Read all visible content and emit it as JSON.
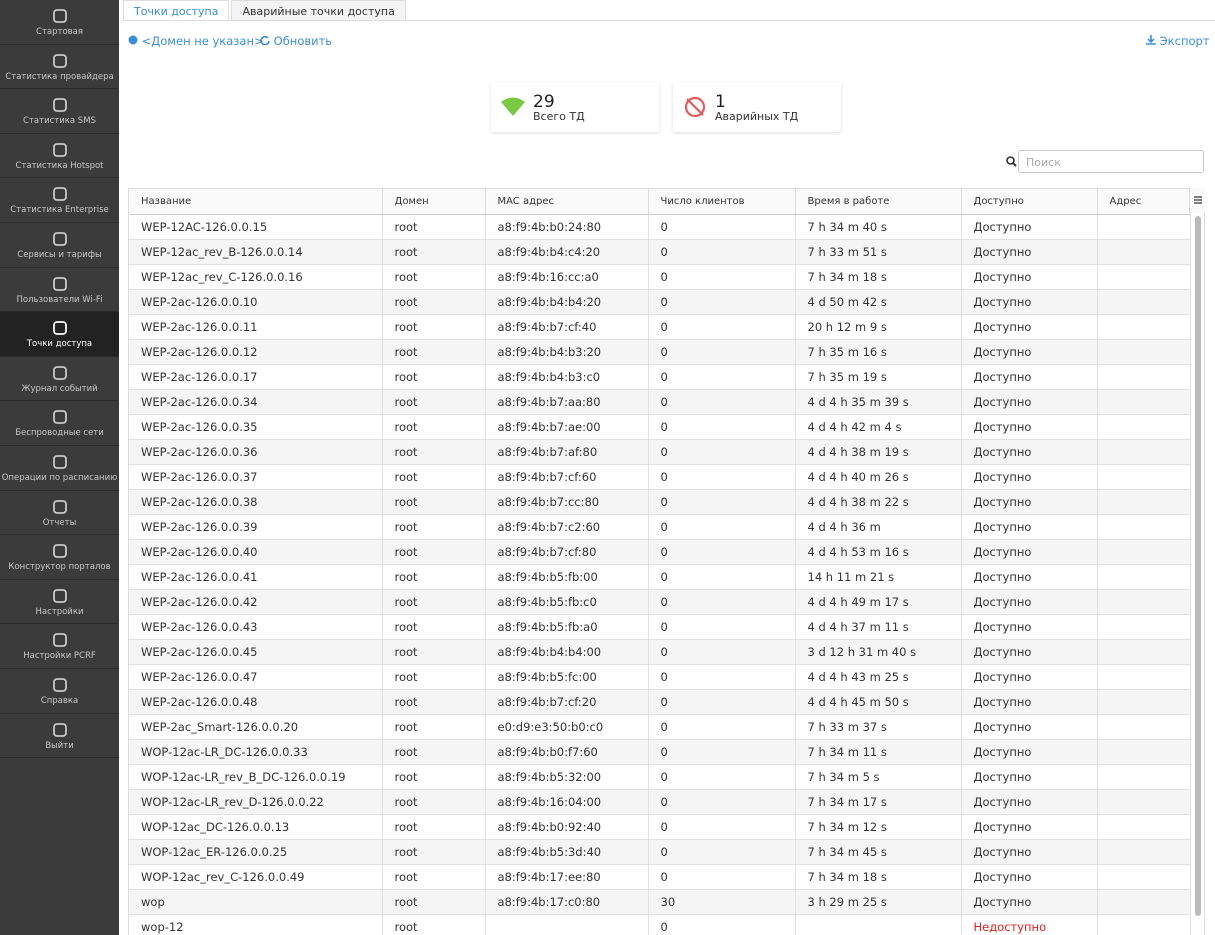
{
  "sidebar": {
    "items": [
      "Стартовая",
      "Статистика провайдера",
      "Статистика SMS",
      "Статистика Hotspot",
      "Статистика Enterprise",
      "Сервисы и тарифы",
      "Пользователи Wi-Fi",
      "Точки доступа",
      "Журнал событий",
      "Беспроводные сети",
      "Операции по расписанию",
      "Отчеты",
      "Конструктор порталов",
      "Настройки",
      "Настройки PCRF",
      "Справка",
      "Выйти"
    ]
  },
  "tabs": [
    "Точки доступа",
    "Аварийные точки доступа"
  ],
  "toolbar": {
    "domain": "<Домен не указан>",
    "refresh": "Обновить",
    "export": "Экспорт"
  },
  "stats": [
    {
      "value": 29,
      "label": "Всего ТД"
    },
    {
      "value": 1,
      "label": "Аварийных ТД"
    }
  ],
  "search": {
    "placeholder": "Поиск"
  },
  "table": {
    "headers": [
      "Название",
      "Домен",
      "MAC адрес",
      "Число клиентов",
      "Время в работе",
      "Доступно",
      "Адрес"
    ],
    "rows": [
      {
        "name": "WEP-12AC-126.0.0.15",
        "domain": "root",
        "mac": "a8:f9:4b:b0:24:80",
        "clients": 0,
        "uptime": "7 h 34 m 40 s",
        "status": "Доступно"
      },
      {
        "name": "WEP-12ac_rev_B-126.0.0.14",
        "domain": "root",
        "mac": "a8:f9:4b:b4:c4:20",
        "clients": 0,
        "uptime": "7 h 33 m 51 s",
        "status": "Доступно"
      },
      {
        "name": "WEP-12ac_rev_C-126.0.0.16",
        "domain": "root",
        "mac": "a8:f9:4b:16:cc:a0",
        "clients": 0,
        "uptime": "7 h 34 m 18 s",
        "status": "Доступно"
      },
      {
        "name": "WEP-2ac-126.0.0.10",
        "domain": "root",
        "mac": "a8:f9:4b:b4:b4:20",
        "clients": 0,
        "uptime": "4 d 50 m 42 s",
        "status": "Доступно"
      },
      {
        "name": "WEP-2ac-126.0.0.11",
        "domain": "root",
        "mac": "a8:f9:4b:b7:cf:40",
        "clients": 0,
        "uptime": "20 h 12 m 9 s",
        "status": "Доступно"
      },
      {
        "name": "WEP-2ac-126.0.0.12",
        "domain": "root",
        "mac": "a8:f9:4b:b4:b3:20",
        "clients": 0,
        "uptime": "7 h 35 m 16 s",
        "status": "Доступно"
      },
      {
        "name": "WEP-2ac-126.0.0.17",
        "domain": "root",
        "mac": "a8:f9:4b:b4:b3:c0",
        "clients": 0,
        "uptime": "7 h 35 m 19 s",
        "status": "Доступно"
      },
      {
        "name": "WEP-2ac-126.0.0.34",
        "domain": "root",
        "mac": "a8:f9:4b:b7:aa:80",
        "clients": 0,
        "uptime": "4 d 4 h 35 m 39 s",
        "status": "Доступно"
      },
      {
        "name": "WEP-2ac-126.0.0.35",
        "domain": "root",
        "mac": "a8:f9:4b:b7:ae:00",
        "clients": 0,
        "uptime": "4 d 4 h 42 m 4 s",
        "status": "Доступно"
      },
      {
        "name": "WEP-2ac-126.0.0.36",
        "domain": "root",
        "mac": "a8:f9:4b:b7:af:80",
        "clients": 0,
        "uptime": "4 d 4 h 38 m 19 s",
        "status": "Доступно"
      },
      {
        "name": "WEP-2ac-126.0.0.37",
        "domain": "root",
        "mac": "a8:f9:4b:b7:cf:60",
        "clients": 0,
        "uptime": "4 d 4 h 40 m 26 s",
        "status": "Доступно"
      },
      {
        "name": "WEP-2ac-126.0.0.38",
        "domain": "root",
        "mac": "a8:f9:4b:b7:cc:80",
        "clients": 0,
        "uptime": "4 d 4 h 38 m 22 s",
        "status": "Доступно"
      },
      {
        "name": "WEP-2ac-126.0.0.39",
        "domain": "root",
        "mac": "a8:f9:4b:b7:c2:60",
        "clients": 0,
        "uptime": "4 d 4 h 36 m",
        "status": "Доступно"
      },
      {
        "name": "WEP-2ac-126.0.0.40",
        "domain": "root",
        "mac": "a8:f9:4b:b7:cf:80",
        "clients": 0,
        "uptime": "4 d 4 h 53 m 16 s",
        "status": "Доступно"
      },
      {
        "name": "WEP-2ac-126.0.0.41",
        "domain": "root",
        "mac": "a8:f9:4b:b5:fb:00",
        "clients": 0,
        "uptime": "14 h 11 m 21 s",
        "status": "Доступно"
      },
      {
        "name": "WEP-2ac-126.0.0.42",
        "domain": "root",
        "mac": "a8:f9:4b:b5:fb:c0",
        "clients": 0,
        "uptime": "4 d 4 h 49 m 17 s",
        "status": "Доступно"
      },
      {
        "name": "WEP-2ac-126.0.0.43",
        "domain": "root",
        "mac": "a8:f9:4b:b5:fb:a0",
        "clients": 0,
        "uptime": "4 d 4 h 37 m 11 s",
        "status": "Доступно"
      },
      {
        "name": "WEP-2ac-126.0.0.45",
        "domain": "root",
        "mac": "a8:f9:4b:b4:b4:00",
        "clients": 0,
        "uptime": "3 d 12 h 31 m 40 s",
        "status": "Доступно"
      },
      {
        "name": "WEP-2ac-126.0.0.47",
        "domain": "root",
        "mac": "a8:f9:4b:b5:fc:00",
        "clients": 0,
        "uptime": "4 d 4 h 43 m 25 s",
        "status": "Доступно"
      },
      {
        "name": "WEP-2ac-126.0.0.48",
        "domain": "root",
        "mac": "a8:f9:4b:b7:cf:20",
        "clients": 0,
        "uptime": "4 d 4 h 45 m 50 s",
        "status": "Доступно"
      },
      {
        "name": "WEP-2ac_Smart-126.0.0.20",
        "domain": "root",
        "mac": "e0:d9:e3:50:b0:c0",
        "clients": 0,
        "uptime": "7 h 33 m 37 s",
        "status": "Доступно"
      },
      {
        "name": "WOP-12ac-LR_DC-126.0.0.33",
        "domain": "root",
        "mac": "a8:f9:4b:b0:f7:60",
        "clients": 0,
        "uptime": "7 h 34 m 11 s",
        "status": "Доступно"
      },
      {
        "name": "WOP-12ac-LR_rev_B_DC-126.0.0.19",
        "domain": "root",
        "mac": "a8:f9:4b:b5:32:00",
        "clients": 0,
        "uptime": "7 h 34 m 5 s",
        "status": "Доступно"
      },
      {
        "name": "WOP-12ac-LR_rev_D-126.0.0.22",
        "domain": "root",
        "mac": "a8:f9:4b:16:04:00",
        "clients": 0,
        "uptime": "7 h 34 m 17 s",
        "status": "Доступно"
      },
      {
        "name": "WOP-12ac_DC-126.0.0.13",
        "domain": "root",
        "mac": "a8:f9:4b:b0:92:40",
        "clients": 0,
        "uptime": "7 h 34 m 12 s",
        "status": "Доступно"
      },
      {
        "name": "WOP-12ac_ER-126.0.0.25",
        "domain": "root",
        "mac": "a8:f9:4b:b5:3d:40",
        "clients": 0,
        "uptime": "7 h 34 m 45 s",
        "status": "Доступно"
      },
      {
        "name": "WOP-12ac_rev_C-126.0.0.49",
        "domain": "root",
        "mac": "a8:f9:4b:17:ee:80",
        "clients": 0,
        "uptime": "7 h 34 m 18 s",
        "status": "Доступно"
      },
      {
        "name": "wop",
        "domain": "root",
        "mac": "a8:f9:4b:17:c0:80",
        "clients": 30,
        "uptime": "3 h 29 m 25 s",
        "status": "Доступно"
      },
      {
        "name": "wop-12",
        "domain": "root",
        "clients": 0,
        "status": "Недоступно"
      }
    ]
  }
}
